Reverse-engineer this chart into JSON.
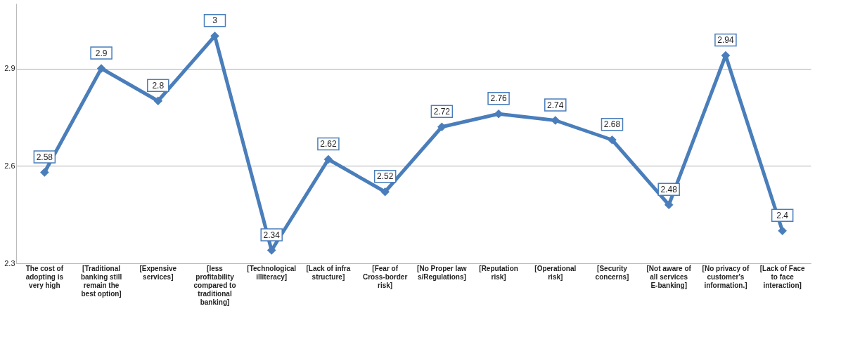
{
  "chart_data": {
    "type": "line",
    "categories": [
      "The cost of adopting is very high",
      "[Traditional banking still remain the best option]",
      "[Expensive services]",
      "[less profitability compared to traditional banking]",
      "[Technological illiteracy]",
      "[Lack of infrastructure]",
      "[Fear of Cross-border risk]",
      "[No Proper laws/Regulations]",
      "[Reputation risk]",
      "[Operational risk]",
      "[Security concerns]",
      "[Not aware of all services E-banking]",
      "[No privacy of customer's information.]",
      "[Lack of Face to face interaction]"
    ],
    "series": [
      {
        "color": "#4a7ebb",
        "values": [
          2.58,
          2.9,
          2.8,
          3,
          2.34,
          2.62,
          2.52,
          2.72,
          2.76,
          2.74,
          2.68,
          2.48,
          2.94,
          2.4
        ]
      }
    ],
    "ylim": [
      2.3,
      3.1
    ],
    "yticks": [
      2.3,
      2.6,
      2.9
    ],
    "grid": "y",
    "marker": "diamond",
    "line_style": "solid",
    "data_labels": true
  }
}
